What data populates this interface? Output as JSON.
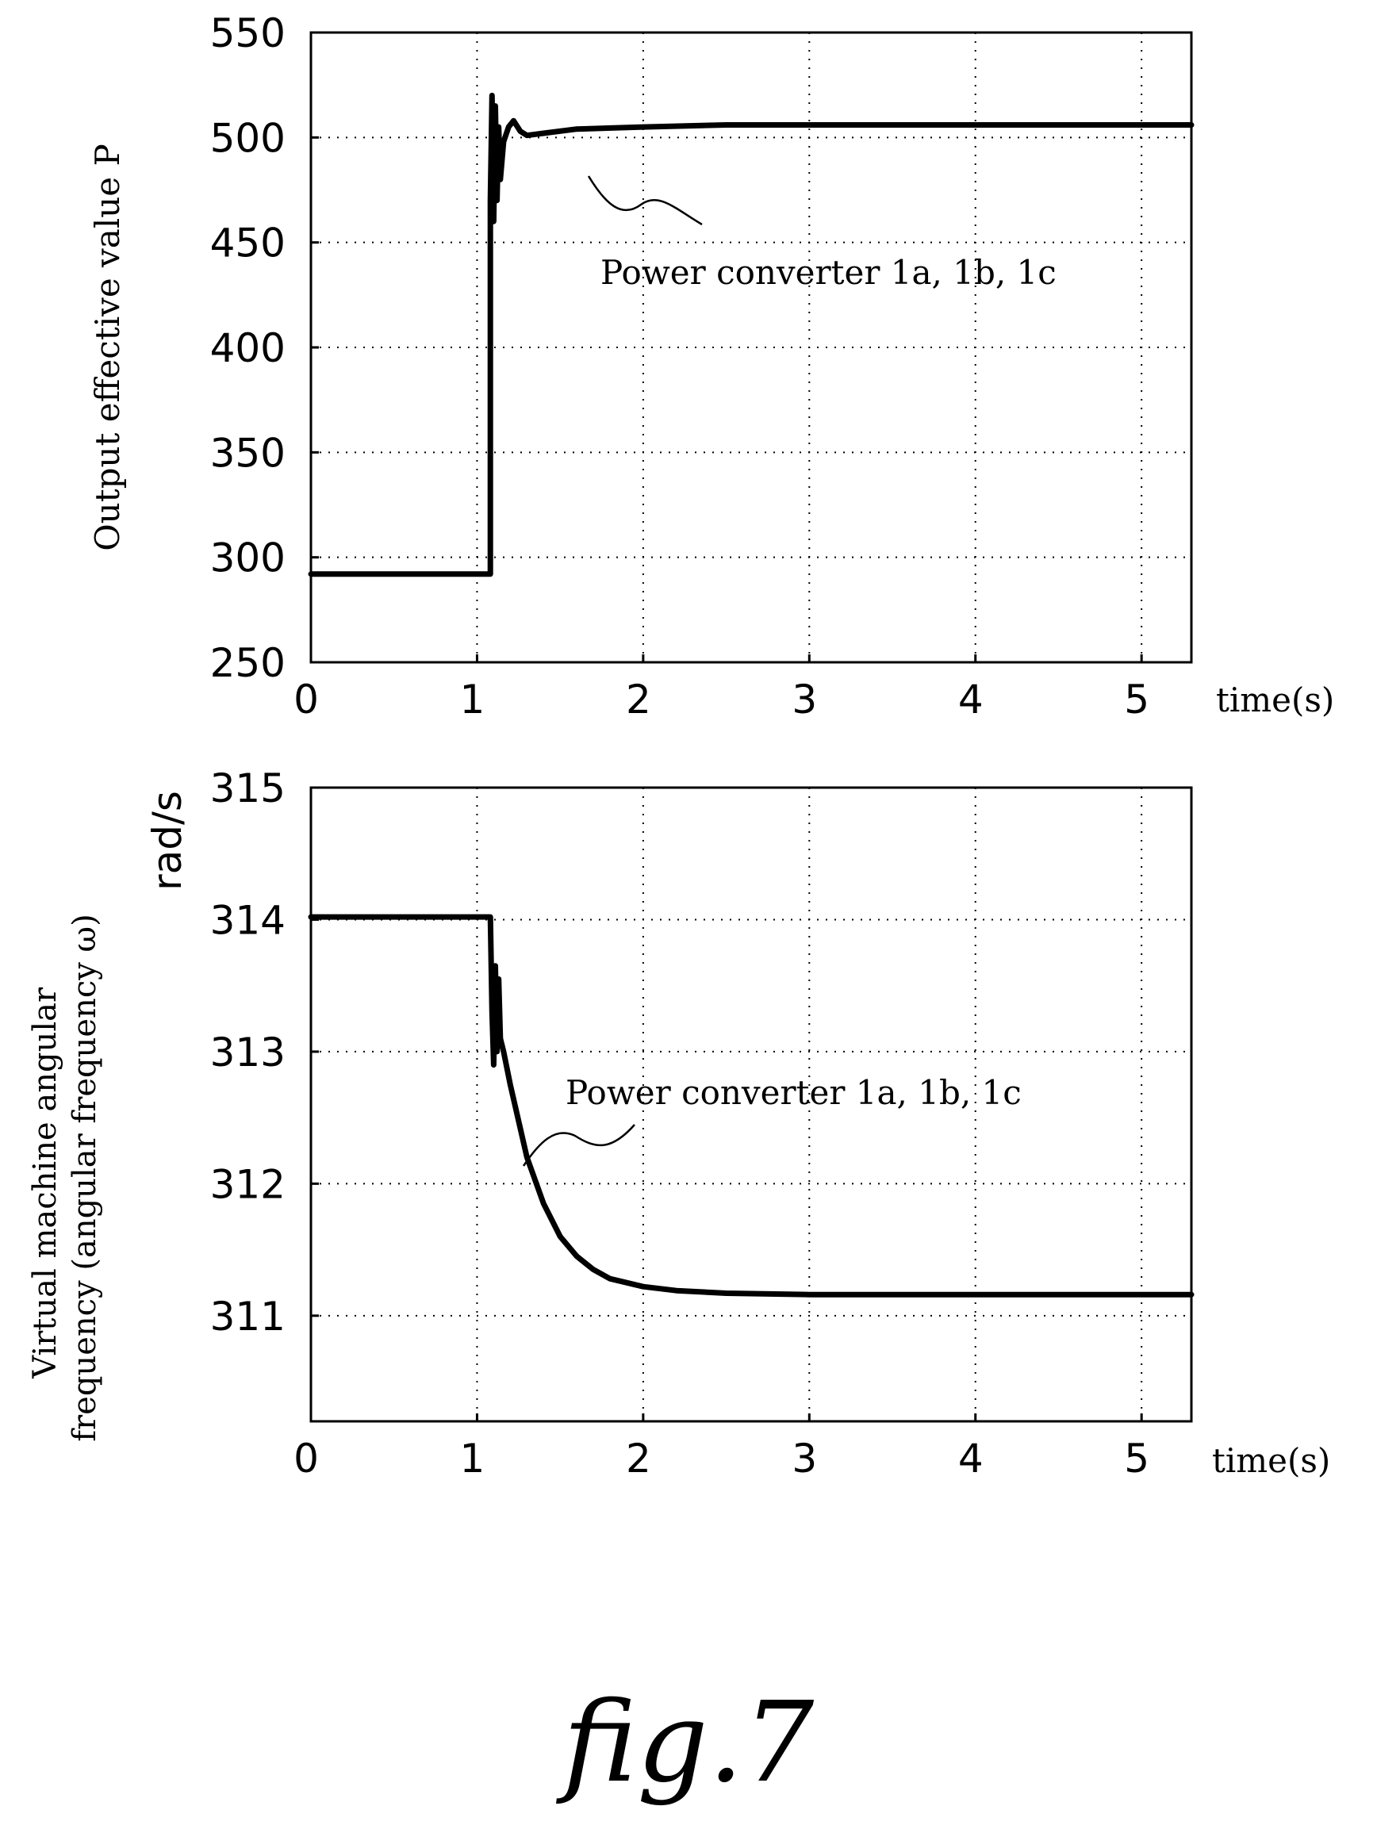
{
  "figure_label": "fig.7",
  "chart_data": [
    {
      "type": "line",
      "ylabel": "Output effective value P",
      "xlabel": "time(s)",
      "xlim": [
        0,
        5.3
      ],
      "ylim": [
        250,
        550
      ],
      "xticks": [
        0,
        1,
        2,
        3,
        4,
        5
      ],
      "yticks": [
        250,
        300,
        350,
        400,
        450,
        500,
        550
      ],
      "grid": true,
      "annotation": "Power converter 1a, 1b, 1c",
      "series": [
        {
          "x": [
            0,
            1.08,
            1.08,
            1.09,
            1.1,
            1.11,
            1.12,
            1.13,
            1.14,
            1.16,
            1.19,
            1.22,
            1.26,
            1.3,
            1.4,
            1.6,
            2.0,
            2.5,
            3.0,
            4.0,
            5.3
          ],
          "y": [
            292,
            292,
            470,
            520,
            460,
            515,
            470,
            505,
            480,
            498,
            505,
            508,
            503,
            501,
            502,
            504,
            505,
            506,
            506,
            506,
            506
          ]
        }
      ]
    },
    {
      "type": "line",
      "ylabel": "Virtual machine angular frequency (angular frequency ω)",
      "yunit": "rad/s",
      "xlabel": "time(s)",
      "xlim": [
        0,
        5.3
      ],
      "ylim": [
        310.2,
        315
      ],
      "xticks": [
        0,
        1,
        2,
        3,
        4,
        5
      ],
      "yticks": [
        311,
        312,
        313,
        314,
        315
      ],
      "grid": true,
      "annotation": "Power converter 1a, 1b, 1c",
      "series": [
        {
          "x": [
            0,
            1.08,
            1.09,
            1.1,
            1.11,
            1.12,
            1.13,
            1.14,
            1.16,
            1.2,
            1.3,
            1.4,
            1.5,
            1.6,
            1.7,
            1.8,
            2.0,
            2.2,
            2.5,
            3.0,
            4.0,
            5.3
          ],
          "y": [
            314.02,
            314.02,
            313.3,
            312.9,
            313.65,
            313.0,
            313.55,
            313.1,
            313.0,
            312.75,
            312.2,
            311.85,
            311.6,
            311.45,
            311.35,
            311.28,
            311.22,
            311.19,
            311.17,
            311.16,
            311.16,
            311.16
          ]
        }
      ]
    }
  ]
}
